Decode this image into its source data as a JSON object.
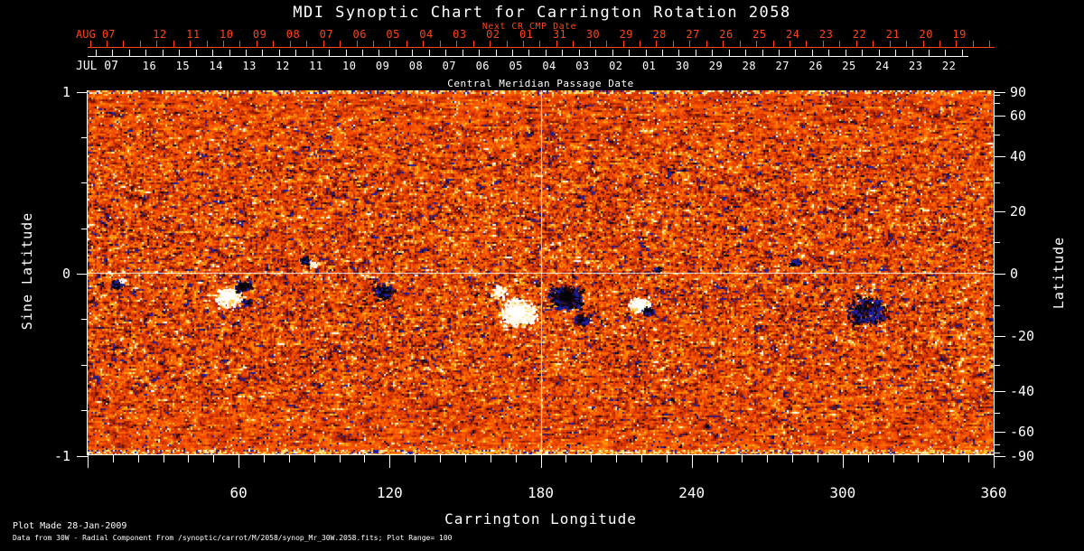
{
  "title": "MDI Synoptic Chart for Carrington Rotation 2058",
  "colors": {
    "background": "#000000",
    "text": "#ffffff",
    "red_accent": "#ff4513",
    "map_base": "#e84300",
    "map_negative": "#1a1ea6",
    "map_positive": "#ffffff"
  },
  "top_axis_red": {
    "era_label": "AUG 07",
    "sub_label": "Next CR CMP Date",
    "tick_labels": [
      "12",
      "11",
      "10",
      "09",
      "08",
      "07",
      "06",
      "05",
      "04",
      "03",
      "02",
      "01",
      "31",
      "30",
      "29",
      "28",
      "27",
      "26",
      "25",
      "24",
      "23",
      "22",
      "21",
      "20",
      "19"
    ]
  },
  "top_axis_white": {
    "era_label": "JUL 07",
    "axis_title": "Central Meridian Passage Date",
    "tick_labels": [
      "16",
      "15",
      "14",
      "13",
      "12",
      "11",
      "10",
      "09",
      "08",
      "07",
      "06",
      "05",
      "04",
      "03",
      "02",
      "01",
      "30",
      "29",
      "28",
      "27",
      "26",
      "25",
      "24",
      "23",
      "22"
    ]
  },
  "bottom_axis": {
    "title": "Carrington Longitude",
    "tick_labels": [
      "60",
      "120",
      "180",
      "240",
      "300",
      "360"
    ],
    "tick_values": [
      60,
      120,
      180,
      240,
      300,
      360
    ]
  },
  "left_axis": {
    "title": "Sine Latitude",
    "tick_labels": [
      "1",
      "0",
      "-1"
    ],
    "tick_values": [
      1,
      0,
      -1
    ]
  },
  "right_axis": {
    "title": "Latitude",
    "tick_labels": [
      "90",
      "60",
      "40",
      "20",
      "0",
      "-20",
      "-40",
      "-60",
      "-90"
    ],
    "tick_values": [
      90,
      60,
      40,
      20,
      0,
      -20,
      -40,
      -60,
      -90
    ]
  },
  "footer": {
    "line1": "Plot Made 28-Jan-2009",
    "line2": "Data from 30W - Radial Component From /synoptic/carrot/M/2058/synop_Mr_30W.2058.fits; Plot Range=  100"
  },
  "chart_data": {
    "type": "heatmap",
    "title": "MDI Synoptic Chart for Carrington Rotation 2058",
    "xlabel": "Carrington Longitude",
    "ylabel": "Sine Latitude",
    "y2label": "Latitude",
    "xlim": [
      0,
      360
    ],
    "ylim": [
      -1,
      1
    ],
    "x_major_tick_step": 60,
    "x_minor_tick_step": 10,
    "value_range_gauss": 100,
    "carrington_rotation": 2058,
    "crosshair": {
      "longitude": 180,
      "sine_latitude": 0
    },
    "colormap": "red-temperature magnetogram: negative field = black/navy blue, quiet = red-orange, positive field = yellow/white",
    "palette": [
      {
        "v": 0.105,
        "color": "#1a1ea6"
      },
      {
        "v": 0.155,
        "color": "#0a0412"
      },
      {
        "v": 0.26,
        "color": "#701200"
      },
      {
        "v": 0.36,
        "color": "#a52300"
      },
      {
        "v": 0.46,
        "color": "#cf3300"
      },
      {
        "v": 0.56,
        "color": "#e84300"
      },
      {
        "v": 0.66,
        "color": "#f75200"
      },
      {
        "v": 0.76,
        "color": "#ff6702"
      },
      {
        "v": 0.84,
        "color": "#ff8200"
      },
      {
        "v": 0.9,
        "color": "#ff9d00"
      },
      {
        "v": 0.955,
        "color": "#ffc330"
      },
      {
        "v": 0.99,
        "color": "#ffe98e"
      },
      {
        "v": 9.0,
        "color": "#ffffff"
      }
    ],
    "noise": {
      "seed": 20582058,
      "cell": 2,
      "pos_speck_prob": 0.032,
      "neg_speck_prob": 0.016
    },
    "active_regions": [
      {
        "lon": 11,
        "sinlat": -0.065,
        "polarity": "negative",
        "radius": 7,
        "intensity": 0.45
      },
      {
        "lon": 13.5,
        "sinlat": -0.04,
        "polarity": "positive",
        "radius": 4,
        "intensity": 0.35
      },
      {
        "lon": 55.5,
        "sinlat": -0.135,
        "polarity": "positive",
        "radius": 13,
        "intensity": 1.0
      },
      {
        "lon": 61.5,
        "sinlat": -0.075,
        "polarity": "negative",
        "radius": 8,
        "intensity": 1.0
      },
      {
        "lon": 63,
        "sinlat": -0.16,
        "polarity": "negative",
        "radius": 5,
        "intensity": 0.5
      },
      {
        "lon": 86,
        "sinlat": 0.07,
        "polarity": "negative",
        "radius": 5,
        "intensity": 0.9
      },
      {
        "lon": 89.5,
        "sinlat": 0.05,
        "polarity": "positive",
        "radius": 4,
        "intensity": 0.8
      },
      {
        "lon": 117,
        "sinlat": -0.1,
        "polarity": "negative",
        "radius": 13,
        "intensity": 0.3
      },
      {
        "lon": 171,
        "sinlat": -0.22,
        "polarity": "positive",
        "radius": 19,
        "intensity": 0.85
      },
      {
        "lon": 163,
        "sinlat": -0.1,
        "polarity": "positive",
        "radius": 9,
        "intensity": 0.4
      },
      {
        "lon": 190,
        "sinlat": -0.135,
        "polarity": "negative",
        "radius": 17,
        "intensity": 0.85
      },
      {
        "lon": 196,
        "sinlat": -0.26,
        "polarity": "negative",
        "radius": 8,
        "intensity": 0.4
      },
      {
        "lon": 219,
        "sinlat": -0.175,
        "polarity": "positive",
        "radius": 11,
        "intensity": 0.95
      },
      {
        "lon": 222.5,
        "sinlat": -0.21,
        "polarity": "negative",
        "radius": 6,
        "intensity": 1.0
      },
      {
        "lon": 309,
        "sinlat": -0.21,
        "polarity": "negative",
        "radius": 22,
        "intensity": 0.3
      },
      {
        "lon": 281,
        "sinlat": 0.06,
        "polarity": "negative",
        "radius": 6,
        "intensity": 0.3
      },
      {
        "lon": 226,
        "sinlat": 0.02,
        "polarity": "negative",
        "radius": 5,
        "intensity": 0.3
      }
    ]
  }
}
